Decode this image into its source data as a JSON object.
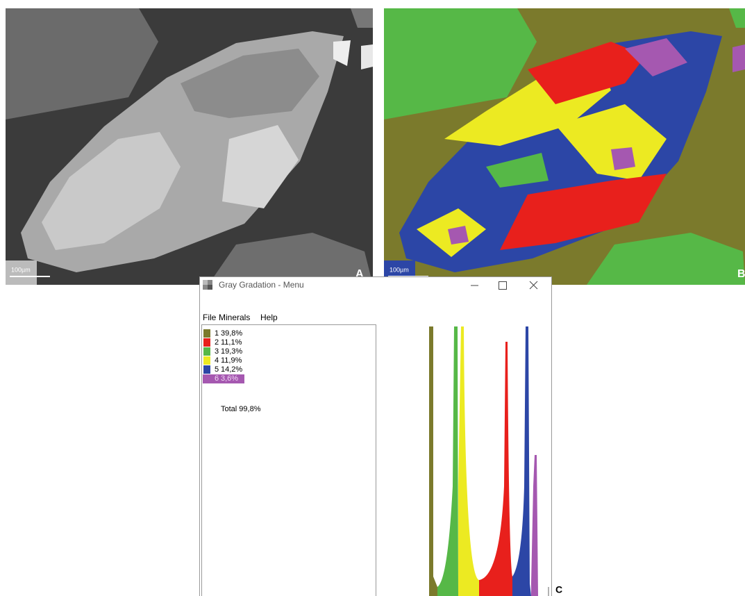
{
  "panels": {
    "a": {
      "label": "A",
      "scale": "100µm"
    },
    "b": {
      "label": "B",
      "scale": "100µm"
    },
    "c": {
      "label": "C"
    }
  },
  "window": {
    "title": "Gray Gradation - Menu",
    "menu": [
      "File",
      "Minerals",
      "Help"
    ],
    "legend": [
      {
        "id": "1",
        "percent": "39,8%",
        "color": "#7b7a2c"
      },
      {
        "id": "2",
        "percent": "11,1%",
        "color": "#e8201c"
      },
      {
        "id": "3",
        "percent": "19,3%",
        "color": "#56b847"
      },
      {
        "id": "4",
        "percent": "11,9%",
        "color": "#ecea22"
      },
      {
        "id": "5",
        "percent": "14,2%",
        "color": "#2c46a6"
      },
      {
        "id": "6",
        "percent": "3,6%",
        "color": "#a558b0"
      }
    ],
    "total": "Total 99,8%"
  }
}
